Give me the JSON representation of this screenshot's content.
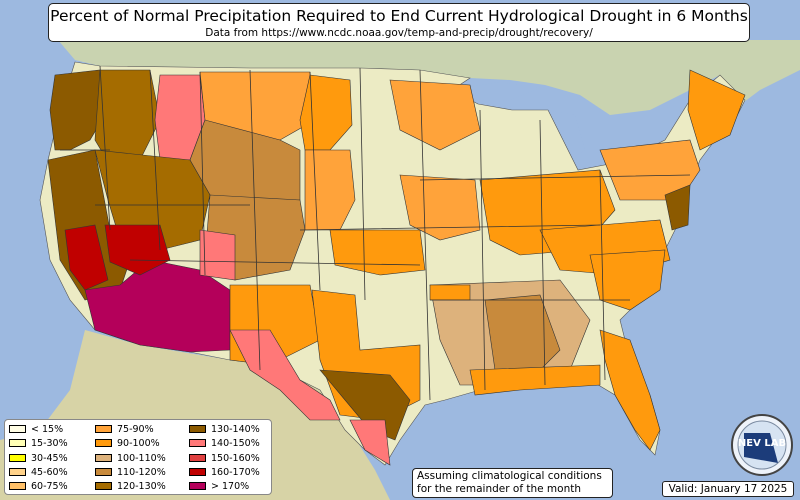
{
  "title": "Percent of Normal Precipitation Required to End Current Hydrological Drought in 6 Months",
  "subtitle": "Data from https://www.ncdc.noaa.gov/temp-and-precip/drought/recovery/",
  "legend": [
    {
      "label": "< 15%",
      "color": "#fffde5"
    },
    {
      "label": "15-30%",
      "color": "#ffffb5"
    },
    {
      "label": "30-45%",
      "color": "#ffff00"
    },
    {
      "label": "45-60%",
      "color": "#ffd28a"
    },
    {
      "label": "60-75%",
      "color": "#ffc068"
    },
    {
      "label": "75-90%",
      "color": "#ffa33a"
    },
    {
      "label": "90-100%",
      "color": "#ff9a0d"
    },
    {
      "label": "100-110%",
      "color": "#ddb27c"
    },
    {
      "label": "110-120%",
      "color": "#c88a3c"
    },
    {
      "label": "120-130%",
      "color": "#a56c00"
    },
    {
      "label": "130-140%",
      "color": "#8c5a00"
    },
    {
      "label": "140-150%",
      "color": "#ff7878"
    },
    {
      "label": "150-160%",
      "color": "#e04040"
    },
    {
      "label": "160-170%",
      "color": "#c00000"
    },
    {
      "label": "> 170%",
      "color": "#b4005a"
    }
  ],
  "note": "Assuming climatological conditions for the remainder of the month",
  "valid": "Valid: January 17 2025",
  "logo_text": "NEV LAB",
  "colors": {
    "water": "#9db9e0",
    "land": "#d6d9b4",
    "no_drought": "#ecebc4"
  }
}
